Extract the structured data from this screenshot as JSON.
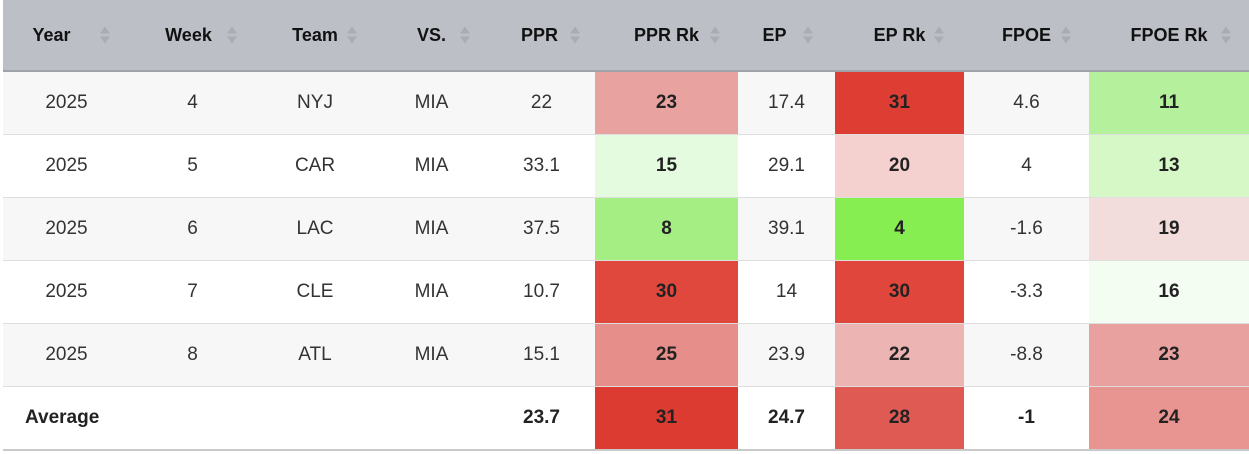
{
  "columns": [
    "Year",
    "Week",
    "Team",
    "VS.",
    "PPR",
    "PPR Rk",
    "EP",
    "EP Rk",
    "FPOE",
    "FPOE Rk"
  ],
  "rows": [
    {
      "year": "2025",
      "week": "4",
      "team": "NYJ",
      "vs": "MIA",
      "ppr": "22",
      "ppr_rk": "23",
      "ep": "17.4",
      "ep_rk": "31",
      "fpoe": "4.6",
      "fpoe_rk": "11",
      "ppr_rk_color": "#e8a3a1",
      "ep_rk_color": "#dd3d32",
      "fpoe_rk_color": "#b5f09d"
    },
    {
      "year": "2025",
      "week": "5",
      "team": "CAR",
      "vs": "MIA",
      "ppr": "33.1",
      "ppr_rk": "15",
      "ep": "29.1",
      "ep_rk": "20",
      "fpoe": "4",
      "fpoe_rk": "13",
      "ppr_rk_color": "#e5fbdf",
      "ep_rk_color": "#f4d0cf",
      "fpoe_rk_color": "#d6f8c7"
    },
    {
      "year": "2025",
      "week": "6",
      "team": "LAC",
      "vs": "MIA",
      "ppr": "37.5",
      "ppr_rk": "8",
      "ep": "39.1",
      "ep_rk": "4",
      "fpoe": "-1.6",
      "fpoe_rk": "19",
      "ppr_rk_color": "#a5ee84",
      "ep_rk_color": "#86ee50",
      "fpoe_rk_color": "#f2dcdc"
    },
    {
      "year": "2025",
      "week": "7",
      "team": "CLE",
      "vs": "MIA",
      "ppr": "10.7",
      "ppr_rk": "30",
      "ep": "14",
      "ep_rk": "30",
      "fpoe": "-3.3",
      "fpoe_rk": "16",
      "ppr_rk_color": "#e0473d",
      "ep_rk_color": "#e0463c",
      "fpoe_rk_color": "#f4fdf1"
    },
    {
      "year": "2025",
      "week": "8",
      "team": "ATL",
      "vs": "MIA",
      "ppr": "15.1",
      "ppr_rk": "25",
      "ep": "23.9",
      "ep_rk": "22",
      "fpoe": "-8.8",
      "fpoe_rk": "23",
      "ppr_rk_color": "#e68e8a",
      "ep_rk_color": "#ecb4b2",
      "fpoe_rk_color": "#e8a19f"
    }
  ],
  "average": {
    "label": "Average",
    "ppr": "23.7",
    "ppr_rk": "31",
    "ep": "24.7",
    "ep_rk": "28",
    "fpoe": "-1",
    "fpoe_rk": "24",
    "ppr_rk_color": "#dc3b31",
    "ep_rk_color": "#e05a54",
    "fpoe_rk_color": "#e89490"
  }
}
